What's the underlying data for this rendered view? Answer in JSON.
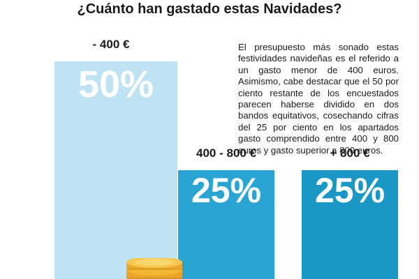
{
  "title": "¿Cuánto han gastado estas Navidades?",
  "description": "El presupuesto más sonado estas festividades navideñas es el referido a un gasto menor de 400 euros. Asimismo, cabe destacar que el 50 por ciento restante de los encuestados parecen haberse dividido en dos bandos equitativos, cosechando cifras del 25 por ciento en los apartados gasto comprendido entre 400 y 800 euros y gasto superior a 800 euros.",
  "chart_data": {
    "type": "bar",
    "title": "¿Cuánto han gastado estas Navidades?",
    "categories": [
      "- 400 €",
      "400 - 800 €",
      "+ 800 €"
    ],
    "values": [
      50,
      25,
      25
    ],
    "value_labels": [
      "50%",
      "25%",
      "25%"
    ],
    "unit": "%",
    "ylim": [
      0,
      50
    ],
    "xlabel": "",
    "ylabel": "",
    "grid": false,
    "legend": "none",
    "colors": [
      "#bfe3f2",
      "#2aa5d3",
      "#1a97c4"
    ]
  },
  "decorations": {
    "coin_icon": "coin-stack-icon",
    "coin_color": "#f2b632"
  }
}
